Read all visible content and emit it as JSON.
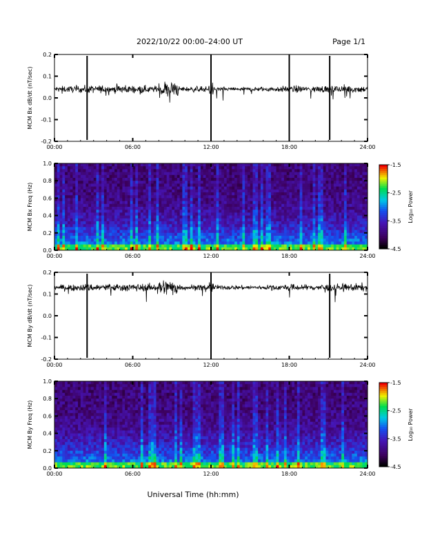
{
  "header": {
    "title": "2022/10/22  00:00–24:00 UT",
    "page": "Page 1/1"
  },
  "footer": {
    "xlabel": "Universal Time (hh:mm)"
  },
  "chart_data": [
    {
      "type": "line",
      "ylabel": "MCM Bx dB/dt (nT/sec)",
      "xlim": [
        0,
        24
      ],
      "ylim": [
        -0.2,
        0.2
      ],
      "xticks": [
        "00:00",
        "06:00",
        "12:00",
        "18:00",
        "24:00"
      ],
      "yticks": [
        "0.2",
        "0.1",
        "0.0",
        "-0.1",
        "-0.2"
      ],
      "baseline": 0.04,
      "spikes": [
        2.5,
        12.0,
        18.0,
        21.1
      ],
      "disturbed_intervals": [
        [
          8.0,
          9.5
        ],
        [
          11.8,
          12.2
        ]
      ]
    },
    {
      "type": "heatmap",
      "ylabel": "MCM Bx Freq (Hz)",
      "xlim": [
        0,
        24
      ],
      "ylim": [
        0.0,
        1.0
      ],
      "xticks": [
        "00:00",
        "06:00",
        "12:00",
        "18:00",
        "24:00"
      ],
      "yticks": [
        "1.0",
        "0.8",
        "0.6",
        "0.4",
        "0.2",
        "0.0"
      ],
      "colorbar": {
        "label": "Log₁₀ Power",
        "range": [
          -4.5,
          -1.5
        ],
        "ticks": [
          "-1.5",
          "-2.5",
          "-3.5",
          "-4.5"
        ]
      }
    },
    {
      "type": "line",
      "ylabel": "MCM By dB/dt (nT/sec)",
      "xlim": [
        0,
        24
      ],
      "ylim": [
        -0.2,
        0.2
      ],
      "xticks": [
        "00:00",
        "06:00",
        "12:00",
        "18:00",
        "24:00"
      ],
      "yticks": [
        "0.2",
        "0.1",
        "0.0",
        "-0.1",
        "-0.2"
      ],
      "baseline": 0.13,
      "spikes": [
        2.5,
        12.0,
        21.1
      ],
      "disturbed_intervals": [
        [
          8.0,
          9.5
        ],
        [
          11.8,
          12.2
        ]
      ]
    },
    {
      "type": "heatmap",
      "ylabel": "MCM By Freq (Hz)",
      "xlim": [
        0,
        24
      ],
      "ylim": [
        0.0,
        1.0
      ],
      "xticks": [
        "00:00",
        "06:00",
        "12:00",
        "18:00",
        "24:00"
      ],
      "yticks": [
        "1.0",
        "0.8",
        "0.6",
        "0.4",
        "0.2",
        "0.0"
      ],
      "colorbar": {
        "label": "Log₁₀ Power",
        "range": [
          -4.5,
          -1.5
        ],
        "ticks": [
          "-1.5",
          "-2.5",
          "-3.5",
          "-4.5"
        ]
      }
    }
  ]
}
